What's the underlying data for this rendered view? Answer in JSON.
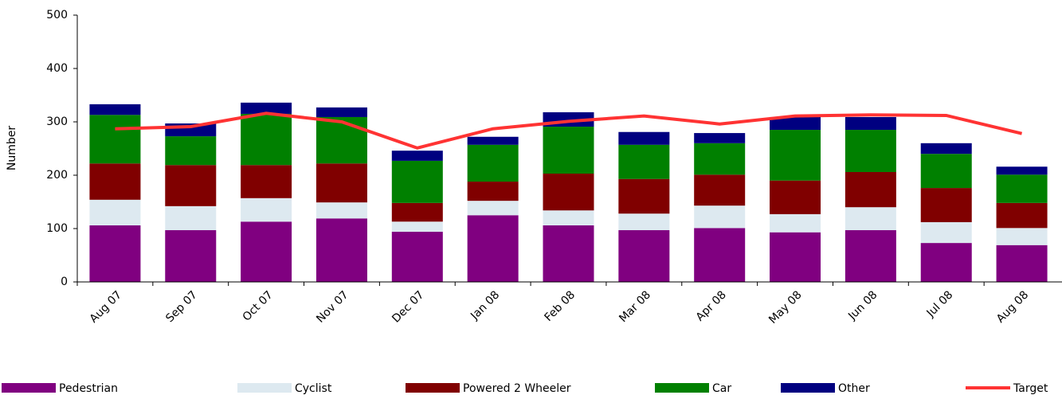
{
  "chart_data": {
    "type": "bar",
    "stacked": true,
    "y_label": "Number",
    "categories": [
      "Aug 07",
      "Sep 07",
      "Oct 07",
      "Nov 07",
      "Dec 07",
      "Jan 08",
      "Feb 08",
      "Mar 08",
      "Apr 08",
      "May 08",
      "Jun 08",
      "Jul 08",
      "Aug 08"
    ],
    "series": [
      {
        "name": "Pedestrian",
        "color": "#800080",
        "values": [
          106,
          97,
          113,
          119,
          94,
          125,
          106,
          97,
          101,
          93,
          97,
          73,
          69
        ]
      },
      {
        "name": "Cyclist",
        "color": "#dde9f0",
        "values": [
          48,
          45,
          44,
          30,
          19,
          27,
          28,
          31,
          42,
          34,
          43,
          39,
          32
        ]
      },
      {
        "name": "Powered 2 Wheeler",
        "color": "#800000",
        "values": [
          68,
          77,
          62,
          73,
          35,
          36,
          69,
          65,
          58,
          63,
          66,
          64,
          47
        ]
      },
      {
        "name": "Car",
        "color": "#008000",
        "values": [
          91,
          54,
          96,
          87,
          79,
          69,
          88,
          64,
          59,
          95,
          79,
          64,
          53
        ]
      },
      {
        "name": "Other",
        "color": "#000080",
        "values": [
          20,
          24,
          21,
          18,
          19,
          15,
          27,
          24,
          19,
          24,
          24,
          20,
          15
        ]
      },
      {
        "name": "Target",
        "type": "line",
        "color": "#ff3333",
        "values": [
          287,
          291,
          316,
          300,
          251,
          287,
          301,
          311,
          296,
          311,
          313,
          312,
          278
        ]
      }
    ],
    "ylim": [
      0,
      500
    ],
    "yticks": [
      0,
      100,
      200,
      300,
      400,
      500
    ],
    "grid": false
  }
}
